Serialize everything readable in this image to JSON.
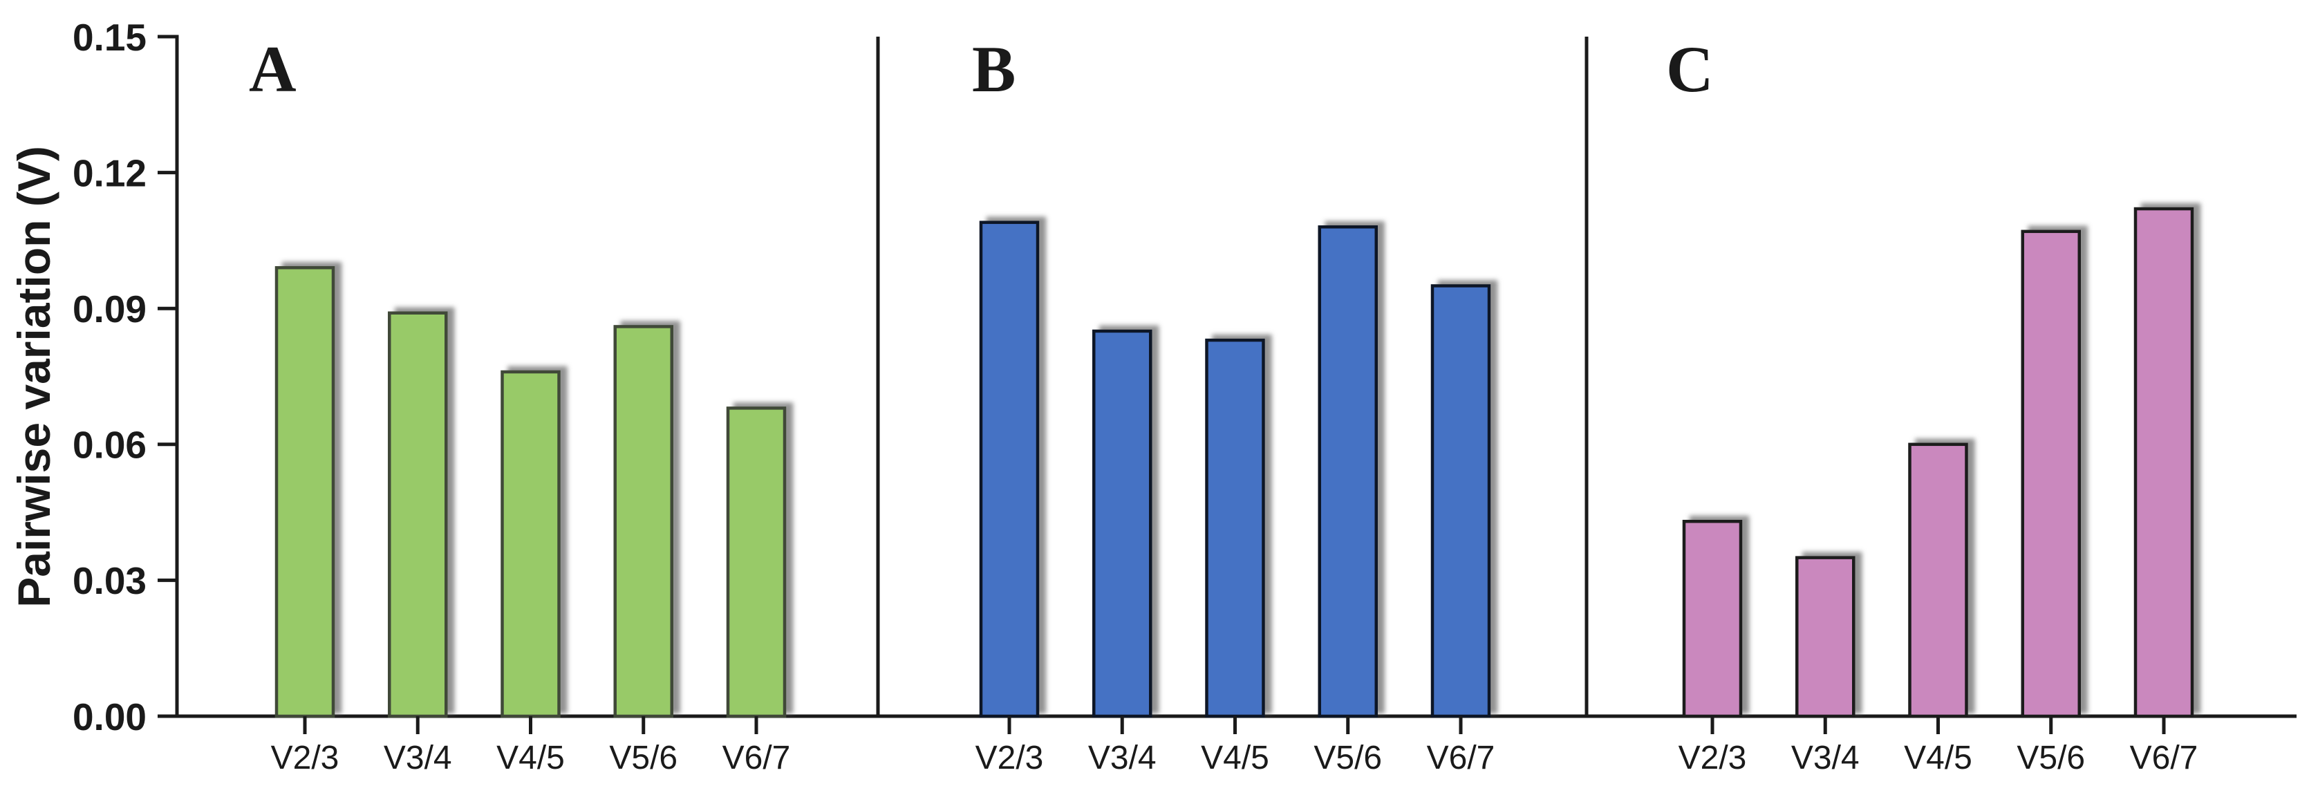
{
  "chart_data": {
    "type": "bar",
    "title": "",
    "xlabel": "",
    "ylabel": "Pairwise variation (V)",
    "ylim": [
      0,
      0.15
    ],
    "yticks": [
      0,
      0.03,
      0.06,
      0.09,
      0.12,
      0.15
    ],
    "ytick_labels": [
      "0.00",
      "0.03",
      "0.06",
      "0.09",
      "0.12",
      "0.15"
    ],
    "categories": [
      "V2/3",
      "V3/4",
      "V4/5",
      "V5/6",
      "V6/7"
    ],
    "grid": false,
    "legend": null,
    "layout": "three horizontal panels separated by vertical divider lines, panel letter in top-left of each panel",
    "panels": [
      {
        "label": "A",
        "bar_fill": "#98ca68",
        "bar_border": "#414a38",
        "values": [
          0.099,
          0.089,
          0.076,
          0.086,
          0.068
        ]
      },
      {
        "label": "B",
        "bar_fill": "#4472c4",
        "bar_border": "#0e1627",
        "values": [
          0.109,
          0.085,
          0.083,
          0.108,
          0.095
        ]
      },
      {
        "label": "C",
        "bar_fill": "#ca88be",
        "bar_border": "#1a1a1a",
        "values": [
          0.043,
          0.035,
          0.06,
          0.107,
          0.112
        ]
      }
    ],
    "colors": {
      "axis": "#1a1a1a",
      "bar_shadow": "#8c8c8c",
      "background": "#ffffff"
    }
  }
}
